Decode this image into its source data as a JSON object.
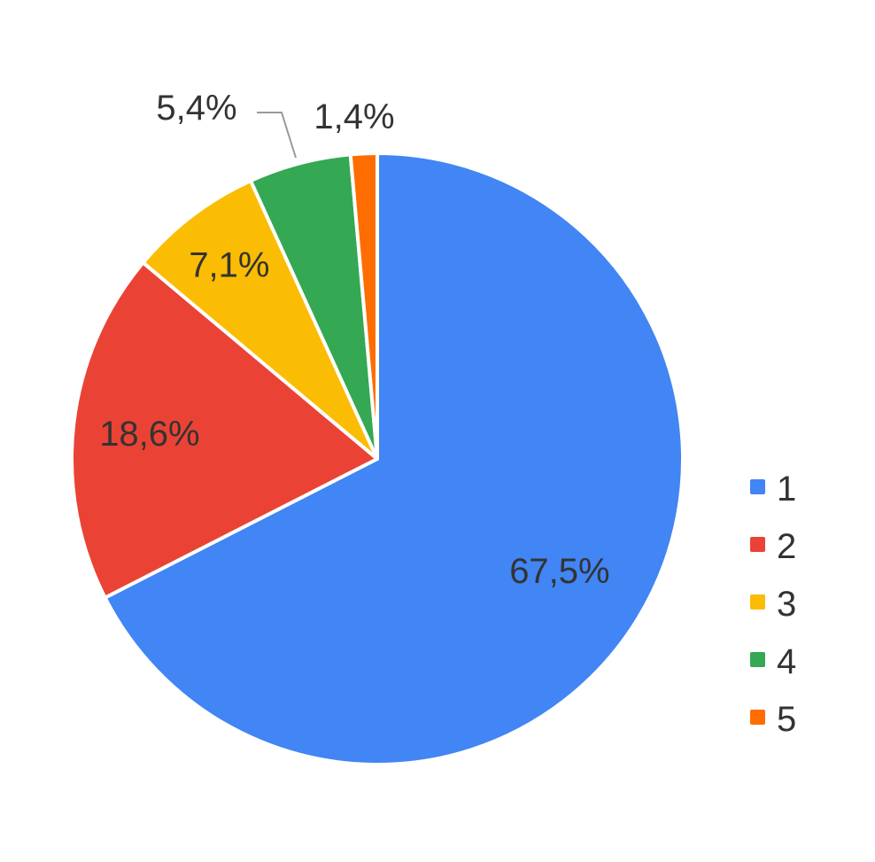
{
  "chart_data": {
    "type": "pie",
    "start": "top",
    "direction": "clockwise",
    "categories": [
      "1",
      "2",
      "3",
      "4",
      "5"
    ],
    "values": [
      67.5,
      18.6,
      7.1,
      5.4,
      1.4
    ],
    "labels": [
      "67,5%",
      "18,6%",
      "7,1%",
      "5,4%",
      "1,4%"
    ],
    "colors": [
      "#4285F4",
      "#EA4335",
      "#FBBC04",
      "#34A853",
      "#FF6D01"
    ],
    "legend": {
      "placement": "right",
      "entries": [
        "1",
        "2",
        "3",
        "4",
        "5"
      ]
    }
  }
}
